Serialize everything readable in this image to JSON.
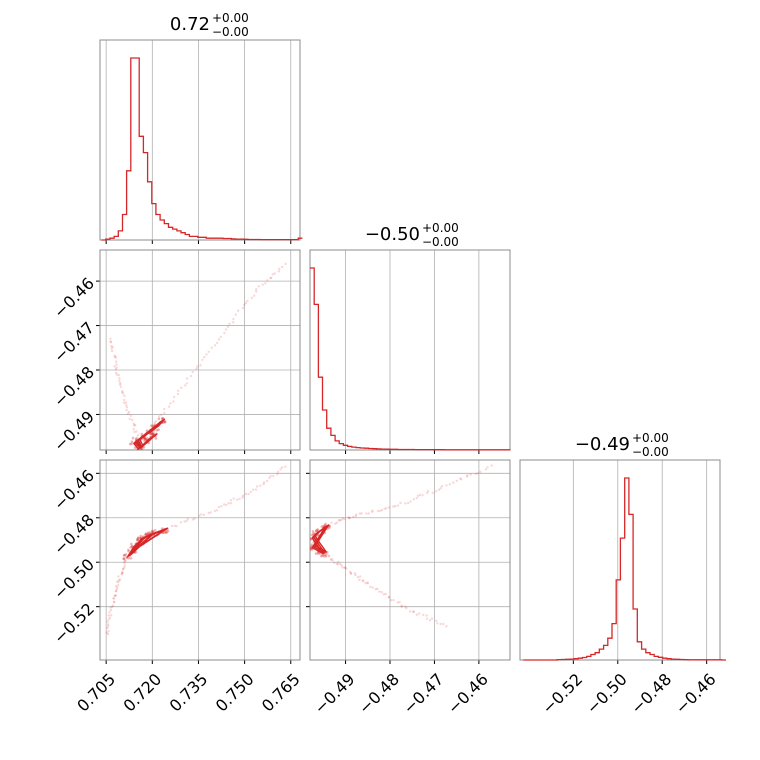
{
  "chart_data": {
    "type": "corner",
    "color": "#d62728",
    "titles": [
      {
        "value": "0.72",
        "plus": "+0.00",
        "minus": "−0.00"
      },
      {
        "value": "−0.50",
        "plus": "+0.00",
        "minus": "−0.00"
      },
      {
        "value": "−0.49",
        "plus": "+0.00",
        "minus": "−0.00"
      }
    ],
    "params": [
      {
        "range": [
          0.703,
          0.768
        ],
        "ticks": [
          0.705,
          0.72,
          0.735,
          0.75,
          0.765
        ],
        "tick_labels": [
          "0.705",
          "0.720",
          "0.735",
          "0.750",
          "0.765"
        ]
      },
      {
        "range": [
          -0.498,
          -0.453
        ],
        "ticks": [
          -0.49,
          -0.48,
          -0.47,
          -0.46
        ],
        "tick_labels": [
          "−0.49",
          "−0.48",
          "−0.47",
          "−0.46"
        ]
      },
      {
        "range": [
          -0.544,
          -0.454
        ],
        "ticks": [
          -0.52,
          -0.5,
          -0.48,
          -0.46
        ],
        "tick_labels": [
          "−0.52",
          "−0.50",
          "−0.48",
          "−0.46"
        ]
      }
    ],
    "histograms": [
      {
        "bin_start": 0.7035,
        "bin_width": 0.00136,
        "counts": [
          0,
          0.5,
          1,
          2,
          5,
          14,
          38,
          100,
          100,
          57,
          48,
          32,
          20,
          14,
          11,
          9,
          7,
          6,
          5,
          4,
          3,
          2,
          2,
          1.5,
          1.5,
          1,
          1,
          1,
          1,
          0.8,
          0.8,
          0.6,
          0.5,
          0.5,
          0.4,
          0.3,
          0.3,
          0.3,
          0.2,
          0.2,
          0.2,
          0.2,
          0.2,
          0.2,
          0.2,
          0.2,
          0.2,
          1
        ]
      },
      {
        "bin_start": -0.498,
        "bin_width": 0.00094,
        "counts": [
          100,
          80,
          40,
          22,
          12,
          8,
          5,
          3.5,
          2.6,
          2,
          1.6,
          1.3,
          1.1,
          1,
          0.8,
          0.7,
          0.6,
          0.5,
          0.45,
          0.4,
          0.4,
          0.3,
          0.3,
          0.3,
          0.25,
          0.2,
          0.2,
          0.2,
          0.2,
          0.15,
          0.15,
          0.15,
          0.1,
          0.1,
          0.1,
          0.1,
          0.1,
          0.1,
          0.1,
          0.1,
          0.1,
          0.1,
          0.1,
          0.1,
          0.1,
          0.1,
          0.1,
          0.1
        ]
      },
      {
        "bin_start": -0.5425,
        "bin_width": 0.0019,
        "counts": [
          0,
          0,
          0,
          0,
          0,
          0,
          0,
          0,
          0.2,
          0.3,
          0.4,
          0.5,
          0.7,
          1,
          1.4,
          2,
          3,
          4,
          6,
          8,
          12,
          20,
          44,
          67,
          100,
          80,
          28,
          10,
          6,
          4,
          3,
          2,
          1.5,
          1,
          0.7,
          0.5,
          0.4,
          0.3,
          0.2,
          0.1,
          0.1,
          0.1,
          0.1,
          0.1,
          0.1,
          0.1,
          0.1,
          0
        ]
      }
    ],
    "joint_samples": [
      {
        "x": "param0",
        "y": "param1",
        "core": [
          [
            0.716,
            -0.4975
          ],
          [
            0.715,
            -0.496
          ],
          [
            0.717,
            -0.495
          ],
          [
            0.719,
            -0.494
          ],
          [
            0.721,
            -0.493
          ],
          [
            0.723,
            -0.4915
          ],
          [
            0.714,
            -0.4965
          ],
          [
            0.7155,
            -0.4978
          ],
          [
            0.7185,
            -0.4958
          ],
          [
            0.7205,
            -0.4948
          ]
        ],
        "tails": [
          [
            [
              0.716,
              -0.496
            ],
            [
              0.728,
              -0.4855
            ],
            [
              0.74,
              -0.4745
            ],
            [
              0.752,
              -0.4635
            ],
            [
              0.764,
              -0.4555
            ]
          ],
          [
            [
              0.716,
              -0.496
            ],
            [
              0.7115,
              -0.4885
            ],
            [
              0.7085,
              -0.4805
            ],
            [
              0.7065,
              -0.4725
            ]
          ]
        ]
      },
      {
        "x": "param0",
        "y": "param2",
        "core": [
          [
            0.712,
            -0.4975
          ],
          [
            0.714,
            -0.493
          ],
          [
            0.716,
            -0.4905
          ],
          [
            0.718,
            -0.4885
          ],
          [
            0.721,
            -0.487
          ],
          [
            0.724,
            -0.4855
          ],
          [
            0.7135,
            -0.495
          ],
          [
            0.7165,
            -0.4895
          ],
          [
            0.7195,
            -0.4878
          ]
        ],
        "tails": [
          [
            [
              0.724,
              -0.4855
            ],
            [
              0.74,
              -0.4765
            ],
            [
              0.752,
              -0.4685
            ],
            [
              0.764,
              -0.4565
            ]
          ],
          [
            [
              0.712,
              -0.4975
            ],
            [
              0.709,
              -0.508
            ],
            [
              0.707,
              -0.519
            ],
            [
              0.705,
              -0.533
            ]
          ]
        ]
      },
      {
        "x": "param1",
        "y": "param2",
        "core": [
          [
            -0.4975,
            -0.489
          ],
          [
            -0.4965,
            -0.487
          ],
          [
            -0.4955,
            -0.4855
          ],
          [
            -0.4945,
            -0.484
          ],
          [
            -0.4975,
            -0.4935
          ],
          [
            -0.496,
            -0.495
          ],
          [
            -0.495,
            -0.4962
          ],
          [
            -0.4968,
            -0.4912
          ]
        ],
        "tails": [
          [
            [
              -0.4945,
              -0.484
            ],
            [
              -0.488,
              -0.479
            ],
            [
              -0.478,
              -0.4745
            ],
            [
              -0.468,
              -0.466
            ],
            [
              -0.4565,
              -0.4565
            ]
          ],
          [
            [
              -0.495,
              -0.4962
            ],
            [
              -0.49,
              -0.503
            ],
            [
              -0.484,
              -0.511
            ],
            [
              -0.476,
              -0.521
            ],
            [
              -0.467,
              -0.529
            ]
          ]
        ]
      }
    ]
  }
}
